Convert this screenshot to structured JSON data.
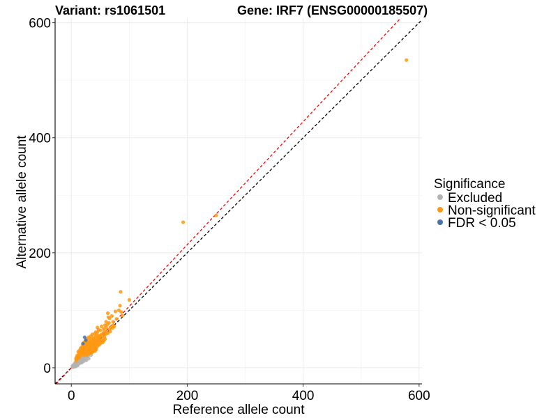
{
  "chart_data": {
    "type": "scatter",
    "title_left": "Variant: rs1061501",
    "title_right": "Gene: IRF7 (ENSG00000185507)",
    "xlabel": "Reference allele count",
    "ylabel": "Alternative allele count",
    "xlim": [
      -28,
      605
    ],
    "ylim": [
      -28,
      608
    ],
    "x_ticks": [
      0,
      200,
      400,
      600
    ],
    "y_ticks": [
      0,
      200,
      400,
      600
    ],
    "grid": true,
    "legend": {
      "title": "Significance",
      "position": "right",
      "entries": [
        {
          "label": "Excluded",
          "color": "#b3b3b3"
        },
        {
          "label": "Non-significant",
          "color": "#ff9810"
        },
        {
          "label": "FDR < 0.05",
          "color": "#4a72a8"
        }
      ]
    },
    "reference_lines": [
      {
        "slope": 1.0,
        "intercept": 0,
        "color": "#000000",
        "style": "dashed"
      },
      {
        "slope": 1.07,
        "intercept": 0,
        "color": "#ff0000",
        "style": "dashed"
      }
    ],
    "series": [
      {
        "name": "Excluded",
        "color": "#b3b3b3",
        "points": [
          [
            3,
            1
          ],
          [
            4,
            3
          ],
          [
            5,
            2
          ],
          [
            6,
            4
          ],
          [
            7,
            5
          ],
          [
            8,
            3
          ],
          [
            8,
            6
          ],
          [
            9,
            7
          ],
          [
            10,
            5
          ],
          [
            10,
            9
          ],
          [
            11,
            8
          ],
          [
            12,
            6
          ],
          [
            12,
            10
          ],
          [
            13,
            11
          ],
          [
            14,
            9
          ],
          [
            14,
            13
          ],
          [
            15,
            12
          ],
          [
            16,
            14
          ],
          [
            17,
            10
          ],
          [
            17,
            15
          ],
          [
            18,
            13
          ],
          [
            19,
            16
          ],
          [
            20,
            12
          ],
          [
            20,
            18
          ],
          [
            21,
            15
          ],
          [
            22,
            17
          ],
          [
            23,
            20
          ],
          [
            24,
            14
          ],
          [
            25,
            19
          ],
          [
            26,
            22
          ],
          [
            27,
            18
          ],
          [
            28,
            24
          ],
          [
            29,
            21
          ],
          [
            30,
            26
          ],
          [
            7,
            2
          ],
          [
            9,
            10
          ],
          [
            11,
            4
          ],
          [
            13,
            15
          ],
          [
            15,
            8
          ],
          [
            16,
            19
          ],
          [
            18,
            9
          ],
          [
            19,
            22
          ],
          [
            21,
            11
          ],
          [
            22,
            25
          ],
          [
            24,
            16
          ],
          [
            25,
            28
          ],
          [
            26,
            13
          ],
          [
            28,
            30
          ],
          [
            30,
            16
          ],
          [
            32,
            28
          ],
          [
            34,
            22
          ],
          [
            6,
            8
          ],
          [
            5,
            6
          ],
          [
            4,
            5
          ],
          [
            2,
            3
          ],
          [
            3,
            4
          ],
          [
            10,
            12
          ],
          [
            12,
            14
          ],
          [
            14,
            16
          ],
          [
            16,
            12
          ]
        ]
      },
      {
        "name": "Non-significant",
        "color": "#ff9810",
        "points": [
          [
            578,
            535
          ],
          [
            193,
            253
          ],
          [
            250,
            265
          ],
          [
            85,
            132
          ],
          [
            100,
            118
          ],
          [
            76,
            98
          ],
          [
            82,
            100
          ],
          [
            84,
            108
          ],
          [
            86,
            97
          ],
          [
            70,
            90
          ],
          [
            88,
            91
          ],
          [
            64,
            88
          ],
          [
            65,
            78
          ],
          [
            60,
            70
          ],
          [
            62,
            75
          ],
          [
            56,
            68
          ],
          [
            58,
            74
          ],
          [
            52,
            72
          ],
          [
            55,
            60
          ],
          [
            50,
            65
          ],
          [
            48,
            56
          ],
          [
            45,
            62
          ],
          [
            46,
            50
          ],
          [
            42,
            55
          ],
          [
            40,
            47
          ],
          [
            38,
            52
          ],
          [
            36,
            44
          ],
          [
            35,
            40
          ],
          [
            34,
            48
          ],
          [
            33,
            36
          ],
          [
            32,
            42
          ],
          [
            30,
            38
          ],
          [
            30,
            32
          ],
          [
            29,
            44
          ],
          [
            28,
            35
          ],
          [
            28,
            28
          ],
          [
            27,
            40
          ],
          [
            26,
            33
          ],
          [
            26,
            26
          ],
          [
            25,
            37
          ],
          [
            25,
            30
          ],
          [
            24,
            24
          ],
          [
            24,
            42
          ],
          [
            23,
            31
          ],
          [
            23,
            27
          ],
          [
            22,
            36
          ],
          [
            22,
            22
          ],
          [
            21,
            29
          ],
          [
            21,
            34
          ],
          [
            20,
            25
          ],
          [
            20,
            31
          ],
          [
            19,
            27
          ],
          [
            19,
            35
          ],
          [
            18,
            23
          ],
          [
            18,
            30
          ],
          [
            17,
            26
          ],
          [
            17,
            32
          ],
          [
            16,
            22
          ],
          [
            16,
            28
          ],
          [
            15,
            20
          ],
          [
            15,
            25
          ],
          [
            14,
            23
          ],
          [
            14,
            18
          ],
          [
            13,
            21
          ],
          [
            13,
            26
          ],
          [
            12,
            17
          ],
          [
            12,
            22
          ],
          [
            11,
            19
          ],
          [
            10,
            16
          ],
          [
            10,
            21
          ],
          [
            9,
            14
          ],
          [
            9,
            18
          ],
          [
            8,
            12
          ],
          [
            8,
            16
          ],
          [
            31,
            29
          ],
          [
            33,
            31
          ],
          [
            35,
            30
          ],
          [
            37,
            33
          ],
          [
            39,
            36
          ],
          [
            41,
            38
          ],
          [
            43,
            40
          ],
          [
            44,
            42
          ],
          [
            47,
            45
          ],
          [
            49,
            47
          ],
          [
            51,
            50
          ],
          [
            53,
            48
          ],
          [
            54,
            56
          ],
          [
            57,
            53
          ],
          [
            59,
            58
          ],
          [
            61,
            62
          ],
          [
            63,
            60
          ],
          [
            66,
            67
          ],
          [
            67,
            63
          ],
          [
            68,
            71
          ],
          [
            71,
            69
          ],
          [
            72,
            74
          ],
          [
            74,
            72
          ],
          [
            36,
            29
          ],
          [
            38,
            31
          ],
          [
            40,
            34
          ],
          [
            42,
            33
          ],
          [
            44,
            36
          ],
          [
            46,
            39
          ],
          [
            48,
            40
          ],
          [
            50,
            42
          ],
          [
            52,
            45
          ],
          [
            54,
            44
          ],
          [
            56,
            47
          ],
          [
            58,
            50
          ],
          [
            27,
            22
          ],
          [
            29,
            24
          ],
          [
            31,
            25
          ],
          [
            33,
            27
          ],
          [
            35,
            26
          ],
          [
            37,
            28
          ],
          [
            39,
            30
          ],
          [
            41,
            29
          ],
          [
            43,
            32
          ],
          [
            24,
            46
          ],
          [
            26,
            50
          ],
          [
            28,
            47
          ],
          [
            30,
            53
          ],
          [
            32,
            51
          ],
          [
            34,
            55
          ],
          [
            36,
            58
          ],
          [
            38,
            49
          ],
          [
            40,
            59
          ],
          [
            42,
            62
          ],
          [
            44,
            57
          ],
          [
            60,
            80
          ],
          [
            66,
            86
          ],
          [
            72,
            80
          ],
          [
            78,
            85
          ],
          [
            63,
            95
          ],
          [
            45,
            70
          ],
          [
            47,
            66
          ],
          [
            52,
            58
          ],
          [
            57,
            64
          ],
          [
            20,
            40
          ],
          [
            18,
            36
          ],
          [
            22,
            44
          ],
          [
            16,
            34
          ],
          [
            14,
            30
          ],
          [
            12,
            28
          ],
          [
            26,
            38
          ],
          [
            28,
            41
          ],
          [
            32,
            45
          ],
          [
            34,
            38
          ],
          [
            36,
            37
          ],
          [
            38,
            41
          ],
          [
            40,
            43
          ],
          [
            42,
            45
          ],
          [
            44,
            48
          ],
          [
            46,
            52
          ],
          [
            48,
            53
          ],
          [
            50,
            55
          ],
          [
            30,
            34
          ],
          [
            31,
            44
          ],
          [
            37,
            46
          ],
          [
            39,
            48
          ],
          [
            41,
            51
          ]
        ]
      },
      {
        "name": "FDR < 0.05",
        "color": "#4a72a8",
        "points": [
          [
            23,
            53
          ],
          [
            20,
            42
          ],
          [
            25,
            48
          ]
        ]
      }
    ]
  }
}
